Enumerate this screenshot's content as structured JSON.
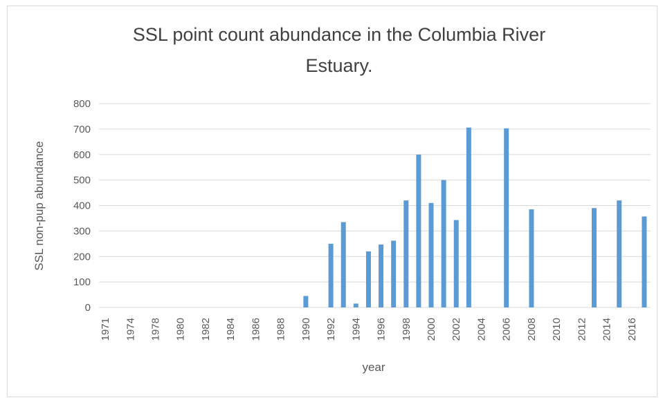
{
  "chart_data": {
    "type": "bar",
    "title": "SSL point count abundance in the Columbia River Estuary.",
    "x_label": "year",
    "y_label": "SSL non-pup abundance",
    "categories": [
      "1971",
      null,
      "1974",
      null,
      "1978",
      null,
      "1980",
      null,
      "1982",
      null,
      "1984",
      null,
      "1986",
      null,
      "1988",
      null,
      "1990",
      null,
      "1992",
      null,
      "1994",
      null,
      "1996",
      null,
      "1998",
      null,
      "2000",
      null,
      "2002",
      null,
      "2004",
      null,
      "2006",
      null,
      "2008",
      null,
      "2010",
      null,
      "2012",
      null,
      "2014",
      null,
      "2016",
      null
    ],
    "values": [
      null,
      null,
      null,
      null,
      null,
      null,
      null,
      null,
      null,
      null,
      null,
      null,
      null,
      null,
      null,
      null,
      45,
      null,
      250,
      335,
      15,
      220,
      247,
      262,
      420,
      600,
      410,
      500,
      343,
      706,
      null,
      null,
      703,
      null,
      385,
      null,
      null,
      null,
      null,
      390,
      null,
      420,
      null,
      357
    ],
    "color": "#5b9bd5",
    "ylim": [
      0,
      800
    ],
    "yticks": [
      0,
      100,
      200,
      300,
      400,
      500,
      600,
      700,
      800
    ],
    "grid": true
  }
}
